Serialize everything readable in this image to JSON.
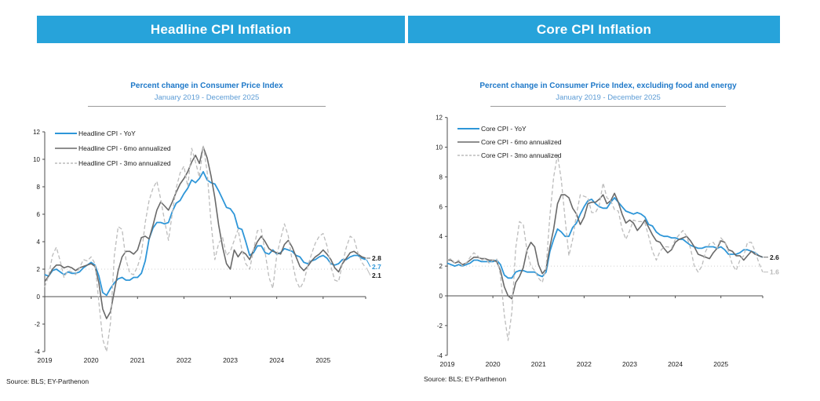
{
  "colors": {
    "header_bg": "#27A3DA",
    "title_blue": "#1E78C8",
    "subtitle_blue": "#5B9BD5",
    "yoy_line": "#2E96D8",
    "ann6_line": "#696969",
    "ann3_line": "#BCBCBC",
    "axis": "#4d4d4d",
    "tick_label": "#1a1a1a",
    "ref_dotted": "#cfcfcf",
    "end_label_dark": "#1a1a1a",
    "end_label_blue": "#2E96D8",
    "end_label_light": "#b9b9b9"
  },
  "chart_data": [
    {
      "id": "headline",
      "type": "line",
      "header": "Headline CPI Inflation",
      "title": "Percent change in Consumer Price Index",
      "subtitle": "January 2019 - December 2025",
      "source": "Source: BLS; EY-Parthenon",
      "x_start": "2019-01",
      "x_end": "2025-12",
      "x_tick_labels": [
        "2019",
        "2020",
        "2021",
        "2022",
        "2023",
        "2024",
        "2025"
      ],
      "ylim": [
        -4,
        12
      ],
      "y_ticks": [
        -4,
        -2,
        0,
        2,
        4,
        6,
        8,
        10,
        12
      ],
      "reference_line_y": 2,
      "legend_position": "upper-left-inside",
      "grid": false,
      "series": [
        {
          "name": "Headline CPI - YoY",
          "style": "solid",
          "color_key": "yoy_line",
          "end_label": "2.7",
          "end_label_color_key": "end_label_blue",
          "values": [
            1.6,
            1.5,
            1.9,
            2.0,
            1.8,
            1.6,
            1.8,
            1.7,
            1.7,
            1.8,
            2.1,
            2.3,
            2.5,
            2.3,
            1.5,
            0.3,
            0.1,
            0.6,
            1.0,
            1.3,
            1.4,
            1.2,
            1.2,
            1.4,
            1.4,
            1.7,
            2.6,
            4.2,
            5.0,
            5.4,
            5.4,
            5.3,
            5.4,
            6.2,
            6.8,
            7.0,
            7.5,
            7.9,
            8.5,
            8.3,
            8.6,
            9.1,
            8.5,
            8.3,
            8.2,
            7.7,
            7.1,
            6.5,
            6.4,
            6.0,
            5.0,
            4.9,
            4.0,
            3.0,
            3.2,
            3.7,
            3.7,
            3.2,
            3.1,
            3.4,
            3.1,
            3.2,
            3.5,
            3.4,
            3.3,
            3.0,
            2.9,
            2.5,
            2.4,
            2.6,
            2.7,
            2.9,
            3.0,
            2.8,
            2.4,
            2.3,
            2.4,
            2.7,
            2.7,
            2.9,
            3.0,
            3.0,
            2.8,
            2.7
          ]
        },
        {
          "name": "Headline CPI - 6mo annualized",
          "style": "solid",
          "color_key": "ann6_line",
          "end_label": "2.8",
          "end_label_color_key": "end_label_dark",
          "values": [
            1.1,
            1.5,
            2.0,
            2.3,
            2.3,
            2.1,
            2.2,
            2.1,
            1.9,
            2.1,
            2.2,
            2.3,
            2.4,
            2.2,
            1.0,
            -0.9,
            -1.6,
            -1.1,
            0.4,
            1.9,
            2.9,
            3.3,
            3.3,
            3.1,
            3.4,
            4.3,
            4.4,
            4.2,
            5.2,
            6.3,
            6.9,
            6.6,
            6.3,
            6.9,
            7.6,
            8.2,
            8.6,
            9.1,
            9.8,
            10.3,
            9.7,
            10.9,
            10.1,
            8.8,
            7.2,
            5.2,
            3.6,
            2.4,
            2.0,
            3.4,
            2.9,
            3.3,
            3.1,
            2.7,
            3.4,
            4.0,
            4.4,
            4.0,
            3.5,
            3.3,
            3.2,
            3.1,
            3.8,
            4.1,
            3.6,
            2.9,
            2.2,
            1.9,
            2.2,
            2.6,
            2.9,
            3.1,
            3.4,
            3.1,
            2.7,
            2.1,
            1.8,
            2.4,
            2.8,
            3.2,
            3.3,
            3.1,
            2.9,
            2.8
          ]
        },
        {
          "name": "Headline CPI - 3mo annualized",
          "style": "dashed",
          "color_key": "ann3_line",
          "end_label": "2.1",
          "end_label_color_key": "end_label_dark",
          "values": [
            0.7,
            1.5,
            3.0,
            3.6,
            2.6,
            1.4,
            1.9,
            1.8,
            1.6,
            2.1,
            2.7,
            2.6,
            2.9,
            2.4,
            -0.4,
            -3.1,
            -4.0,
            -1.9,
            3.0,
            5.1,
            4.9,
            2.7,
            1.7,
            1.6,
            2.2,
            3.1,
            5.4,
            7.0,
            7.9,
            8.4,
            7.1,
            5.5,
            4.1,
            6.1,
            7.9,
            9.0,
            9.5,
            8.0,
            10.8,
            9.8,
            8.7,
            11.0,
            9.1,
            5.4,
            2.7,
            3.9,
            4.3,
            3.0,
            3.3,
            4.1,
            4.9,
            3.4,
            2.4,
            2.0,
            3.4,
            4.8,
            4.9,
            3.2,
            1.4,
            0.6,
            3.0,
            4.2,
            5.3,
            4.4,
            2.6,
            1.2,
            0.6,
            1.1,
            2.2,
            3.1,
            3.9,
            4.4,
            4.6,
            3.7,
            2.2,
            1.2,
            1.1,
            2.4,
            3.6,
            4.4,
            4.2,
            3.2,
            2.5,
            2.1
          ]
        }
      ]
    },
    {
      "id": "core",
      "type": "line",
      "header": "Core CPI Inflation",
      "title": "Percent change in Consumer Price Index, excluding food and energy",
      "subtitle": "January 2019 - December 2025",
      "source": "Source: BLS; EY-Parthenon",
      "x_start": "2019-01",
      "x_end": "2025-12",
      "x_tick_labels": [
        "2019",
        "2020",
        "2021",
        "2022",
        "2023",
        "2024",
        "2025"
      ],
      "ylim": [
        -4,
        12
      ],
      "y_ticks": [
        -4,
        -2,
        0,
        2,
        4,
        6,
        8,
        10,
        12
      ],
      "reference_line_y": 2,
      "legend_position": "upper-left-inside",
      "grid": false,
      "series": [
        {
          "name": "Core CPI - YoY",
          "style": "solid",
          "color_key": "yoy_line",
          "end_label": null,
          "values": [
            2.2,
            2.1,
            2.0,
            2.1,
            2.0,
            2.1,
            2.2,
            2.4,
            2.4,
            2.3,
            2.3,
            2.3,
            2.3,
            2.4,
            2.1,
            1.4,
            1.2,
            1.2,
            1.6,
            1.7,
            1.7,
            1.6,
            1.6,
            1.6,
            1.4,
            1.3,
            1.6,
            3.0,
            3.8,
            4.5,
            4.3,
            4.0,
            4.0,
            4.6,
            4.9,
            5.5,
            6.0,
            6.4,
            6.5,
            6.2,
            6.0,
            5.9,
            5.9,
            6.3,
            6.6,
            6.3,
            6.0,
            5.7,
            5.6,
            5.5,
            5.6,
            5.5,
            5.3,
            4.8,
            4.7,
            4.3,
            4.1,
            4.0,
            4.0,
            3.9,
            3.9,
            3.8,
            3.8,
            3.6,
            3.4,
            3.3,
            3.2,
            3.2,
            3.3,
            3.3,
            3.3,
            3.2,
            3.3,
            3.1,
            2.8,
            2.8,
            2.8,
            2.9,
            3.1,
            3.1,
            3.0,
            2.9,
            2.7,
            2.6
          ]
        },
        {
          "name": "Core CPI - 6mo annualized",
          "style": "solid",
          "color_key": "ann6_line",
          "end_label": "2.6",
          "end_label_color_key": "end_label_dark",
          "values": [
            2.4,
            2.4,
            2.2,
            2.3,
            2.1,
            2.2,
            2.4,
            2.6,
            2.6,
            2.5,
            2.5,
            2.4,
            2.4,
            2.3,
            1.7,
            0.6,
            0.0,
            -0.2,
            0.9,
            1.3,
            1.9,
            3.1,
            3.6,
            3.3,
            2.1,
            1.5,
            1.8,
            3.3,
            4.5,
            6.2,
            6.8,
            6.8,
            6.6,
            5.9,
            5.5,
            4.8,
            5.3,
            6.2,
            6.3,
            6.3,
            6.5,
            6.8,
            6.2,
            6.4,
            6.9,
            6.3,
            5.5,
            4.9,
            5.1,
            4.9,
            4.4,
            4.7,
            5.1,
            4.6,
            4.1,
            3.7,
            3.6,
            3.2,
            2.9,
            3.1,
            3.6,
            3.8,
            3.9,
            4.0,
            3.7,
            3.3,
            2.8,
            2.7,
            2.6,
            2.5,
            2.9,
            3.2,
            3.7,
            3.6,
            3.1,
            3.0,
            2.7,
            2.7,
            2.4,
            2.7,
            3.0,
            2.8,
            2.7,
            2.6
          ]
        },
        {
          "name": "Core CPI - 3mo annualized",
          "style": "dashed",
          "color_key": "ann3_line",
          "end_label": "1.6",
          "end_label_color_key": "end_label_light",
          "values": [
            2.4,
            2.5,
            2.2,
            2.4,
            2.0,
            2.2,
            2.6,
            2.9,
            2.7,
            2.4,
            2.5,
            2.2,
            2.4,
            2.5,
            1.4,
            -1.3,
            -3.0,
            -1.1,
            3.2,
            5.0,
            4.8,
            3.0,
            2.0,
            1.7,
            1.2,
            0.9,
            1.9,
            5.4,
            8.0,
            9.5,
            7.8,
            5.2,
            2.7,
            3.8,
            5.5,
            6.8,
            6.7,
            6.6,
            5.6,
            5.6,
            6.1,
            7.6,
            6.6,
            6.4,
            5.8,
            5.7,
            4.5,
            3.8,
            4.4,
            5.1,
            5.0,
            5.0,
            4.9,
            4.0,
            3.0,
            2.4,
            3.0,
            3.3,
            3.3,
            3.2,
            3.8,
            4.1,
            4.4,
            4.0,
            3.2,
            2.0,
            1.6,
            2.0,
            3.0,
            3.5,
            3.6,
            3.2,
            3.9,
            3.6,
            3.0,
            2.1,
            1.7,
            2.4,
            2.7,
            3.6,
            3.6,
            3.0,
            2.2,
            1.6
          ]
        }
      ]
    }
  ]
}
